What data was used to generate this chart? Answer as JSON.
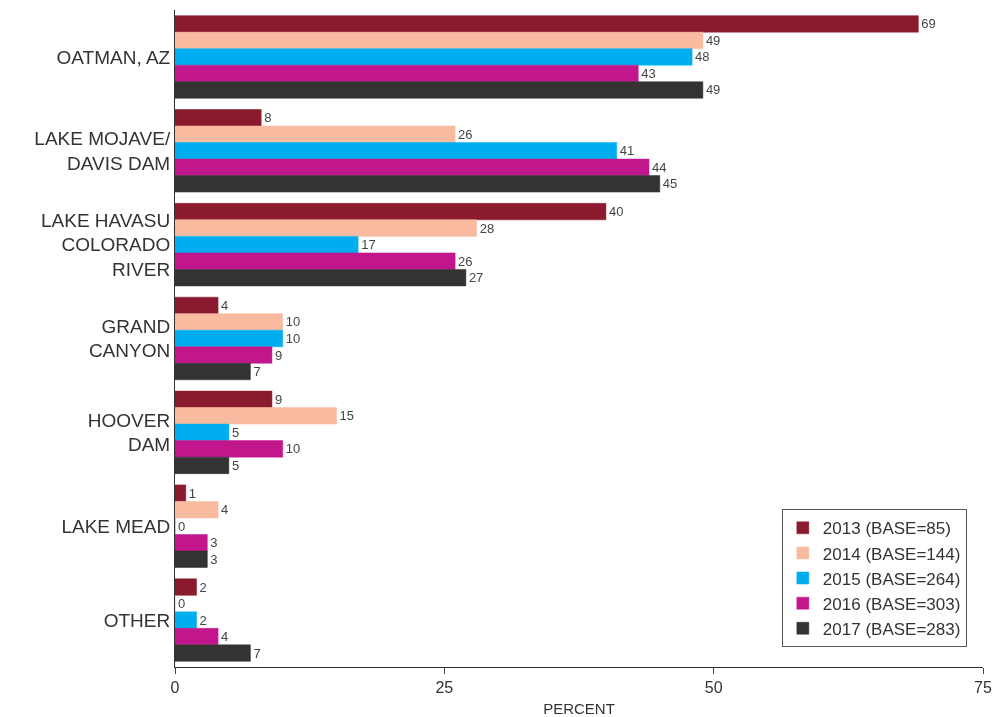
{
  "chart_data": {
    "type": "bar",
    "orientation": "horizontal",
    "xlabel": "PERCENT",
    "categories": [
      "OATMAN, AZ",
      "LAKE MOJAVE/\nDAVIS DAM",
      "LAKE HAVASU\nCOLORADO\nRIVER",
      "GRAND\nCANYON",
      "HOOVER\nDAM",
      "LAKE MEAD",
      "OTHER"
    ],
    "series": [
      {
        "name": "2013 (BASE=85)",
        "color": "#8b1a2f",
        "values": [
          69,
          8,
          40,
          4,
          9,
          1,
          2
        ]
      },
      {
        "name": "2014 (BASE=144)",
        "color": "#f9bba0",
        "values": [
          49,
          26,
          28,
          10,
          15,
          4,
          0
        ]
      },
      {
        "name": "2015 (BASE=264)",
        "color": "#00aeef",
        "values": [
          48,
          41,
          17,
          10,
          5,
          0,
          2
        ]
      },
      {
        "name": "2016 (BASE=303)",
        "color": "#c2168c",
        "values": [
          43,
          44,
          26,
          9,
          10,
          3,
          4
        ]
      },
      {
        "name": "2017 (BASE=283)",
        "color": "#333333",
        "values": [
          49,
          45,
          27,
          7,
          5,
          3,
          7
        ]
      }
    ],
    "xlim": [
      0,
      75
    ],
    "xticks": [
      0,
      25,
      50,
      75
    ],
    "data_labels": true,
    "legend": "bottom right"
  }
}
